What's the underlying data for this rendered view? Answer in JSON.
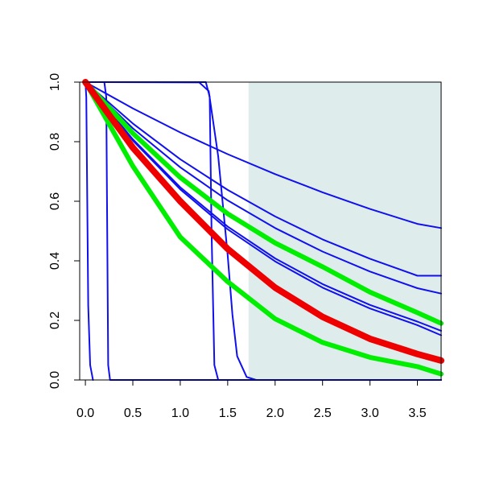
{
  "chart_data": {
    "type": "line",
    "title": "",
    "xlabel": "",
    "ylabel": "",
    "xlim": [
      -0.06,
      3.75
    ],
    "ylim": [
      0.0,
      1.0
    ],
    "x_ticks": [
      "0.0",
      "0.5",
      "1.0",
      "1.5",
      "2.0",
      "2.5",
      "3.0",
      "3.5"
    ],
    "y_ticks": [
      "0.0",
      "0.2",
      "0.4",
      "0.6",
      "0.8",
      "1.0"
    ],
    "grid": false,
    "legend": "none",
    "shaded_region": {
      "x_from": 1.72,
      "x_to": 3.75,
      "color": "#dfecec"
    },
    "series": [
      {
        "color": "#1010ee",
        "width": 2,
        "points": [
          [
            0,
            1
          ],
          [
            0.5,
            0.912
          ],
          [
            1,
            0.831
          ],
          [
            1.5,
            0.758
          ],
          [
            2,
            0.691
          ],
          [
            2.5,
            0.63
          ],
          [
            3,
            0.574
          ],
          [
            3.5,
            0.524
          ],
          [
            3.75,
            0.51
          ]
        ]
      },
      {
        "color": "#1010ee",
        "width": 2,
        "points": [
          [
            0,
            1
          ],
          [
            0.5,
            0.861
          ],
          [
            1,
            0.741
          ],
          [
            1.5,
            0.638
          ],
          [
            2,
            0.549
          ],
          [
            2.5,
            0.472
          ],
          [
            3,
            0.407
          ],
          [
            3.5,
            0.35
          ],
          [
            3.75,
            0.35
          ]
        ]
      },
      {
        "color": "#1010ee",
        "width": 2,
        "points": [
          [
            0,
            1
          ],
          [
            0.5,
            0.845
          ],
          [
            1,
            0.714
          ],
          [
            1.5,
            0.603
          ],
          [
            2,
            0.51
          ],
          [
            2.5,
            0.431
          ],
          [
            3,
            0.364
          ],
          [
            3.5,
            0.308
          ],
          [
            3.75,
            0.29
          ]
        ]
      },
      {
        "color": "#1010ee",
        "width": 2,
        "points": [
          [
            0,
            1
          ],
          [
            0.5,
            0.808
          ],
          [
            1,
            0.647
          ],
          [
            1.5,
            0.515
          ],
          [
            2,
            0.408
          ],
          [
            2.5,
            0.322
          ],
          [
            3,
            0.252
          ],
          [
            3.5,
            0.196
          ],
          [
            3.75,
            0.165
          ]
        ]
      },
      {
        "color": "#1010ee",
        "width": 2,
        "points": [
          [
            0,
            1
          ],
          [
            0.5,
            0.804
          ],
          [
            1,
            0.64
          ],
          [
            1.5,
            0.506
          ],
          [
            2,
            0.398
          ],
          [
            2.5,
            0.31
          ],
          [
            3,
            0.24
          ],
          [
            3.5,
            0.184
          ],
          [
            3.75,
            0.15
          ]
        ]
      },
      {
        "color": "#1010ee",
        "width": 2,
        "points": [
          [
            0,
            1
          ],
          [
            0.01,
            0.95
          ],
          [
            0.02,
            0.6
          ],
          [
            0.03,
            0.25
          ],
          [
            0.05,
            0.05
          ],
          [
            0.08,
            0
          ]
        ]
      },
      {
        "color": "#1010ee",
        "width": 2,
        "points": [
          [
            0,
            1
          ],
          [
            0.2,
            1
          ],
          [
            0.22,
            0.95
          ],
          [
            0.23,
            0.5
          ],
          [
            0.24,
            0.05
          ],
          [
            0.26,
            0
          ],
          [
            3.75,
            0
          ]
        ]
      },
      {
        "color": "#1010ee",
        "width": 2,
        "points": [
          [
            0,
            1
          ],
          [
            1.27,
            1
          ],
          [
            1.31,
            0.95
          ],
          [
            1.33,
            0.5
          ],
          [
            1.36,
            0.05
          ],
          [
            1.4,
            0
          ],
          [
            3.75,
            0
          ]
        ]
      },
      {
        "color": "#1010ee",
        "width": 2,
        "points": [
          [
            0,
            1
          ],
          [
            1.2,
            0.999
          ],
          [
            1.3,
            0.97
          ],
          [
            1.4,
            0.75
          ],
          [
            1.5,
            0.42
          ],
          [
            1.55,
            0.22
          ],
          [
            1.6,
            0.08
          ],
          [
            1.7,
            0.01
          ],
          [
            1.8,
            0
          ],
          [
            3.75,
            0
          ]
        ]
      },
      {
        "color": "#00ee00",
        "width": 6,
        "points": [
          [
            0,
            1
          ],
          [
            0.5,
            0.828
          ],
          [
            1,
            0.68
          ],
          [
            1.5,
            0.558
          ],
          [
            2,
            0.46
          ],
          [
            2.5,
            0.38
          ],
          [
            3,
            0.295
          ],
          [
            3.5,
            0.226
          ],
          [
            3.75,
            0.19
          ]
        ]
      },
      {
        "color": "#00ee00",
        "width": 6,
        "points": [
          [
            0,
            1
          ],
          [
            0.5,
            0.718
          ],
          [
            1,
            0.48
          ],
          [
            1.5,
            0.33
          ],
          [
            2,
            0.205
          ],
          [
            2.5,
            0.126
          ],
          [
            3,
            0.076
          ],
          [
            3.5,
            0.045
          ],
          [
            3.75,
            0.02
          ]
        ]
      },
      {
        "color": "#ee0000",
        "width": 8,
        "points": [
          [
            0,
            1
          ],
          [
            0.5,
            0.78
          ],
          [
            1,
            0.6
          ],
          [
            1.5,
            0.44
          ],
          [
            2,
            0.31
          ],
          [
            2.5,
            0.212
          ],
          [
            3,
            0.138
          ],
          [
            3.5,
            0.087
          ],
          [
            3.75,
            0.065
          ]
        ]
      }
    ]
  }
}
